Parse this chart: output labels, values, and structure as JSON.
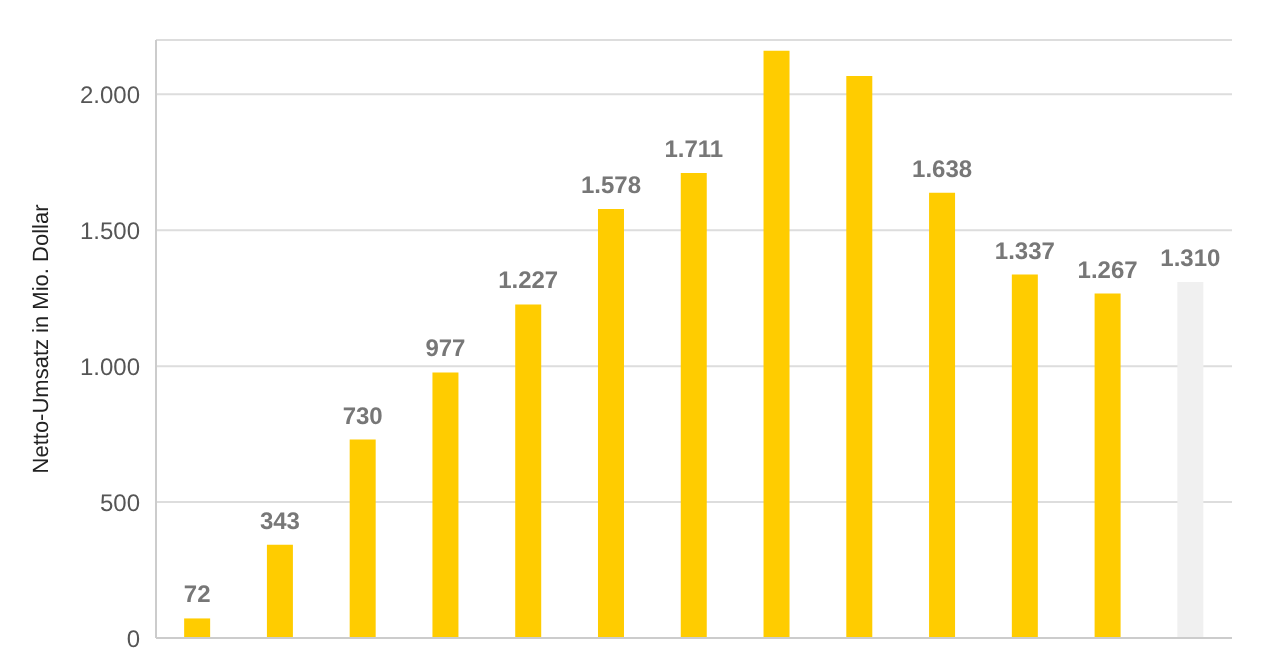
{
  "chart_data": {
    "type": "bar",
    "ylabel": "Netto-Umsatz in Mio. Dollar",
    "categories": [
      null,
      null,
      null,
      null,
      null,
      null,
      null,
      null,
      null,
      null,
      null,
      null,
      null
    ],
    "values": [
      72,
      343,
      730,
      977,
      1227,
      1578,
      1711,
      2160,
      2068,
      1638,
      1337,
      1267,
      1310
    ],
    "value_labels": [
      "72",
      "343",
      "730",
      "977",
      "1.227",
      "1.578",
      "1.711",
      null,
      null,
      "1.638",
      "1.337",
      "1.267",
      "1.310"
    ],
    "colors": [
      "#ffcc00",
      "#ffcc00",
      "#ffcc00",
      "#ffcc00",
      "#ffcc00",
      "#ffcc00",
      "#ffcc00",
      "#ffcc00",
      "#ffcc00",
      "#ffcc00",
      "#ffcc00",
      "#ffcc00",
      "#f0f0f0"
    ],
    "ylim": [
      0,
      2200
    ],
    "yticks": [
      0,
      500,
      {
        "value": 1000,
        "label": "1.000"
      },
      {
        "value": 1500,
        "label": "1.500"
      },
      {
        "value": 2000,
        "label": "2.000"
      }
    ],
    "grid": "y",
    "tick_labels": "y",
    "legend": false
  }
}
